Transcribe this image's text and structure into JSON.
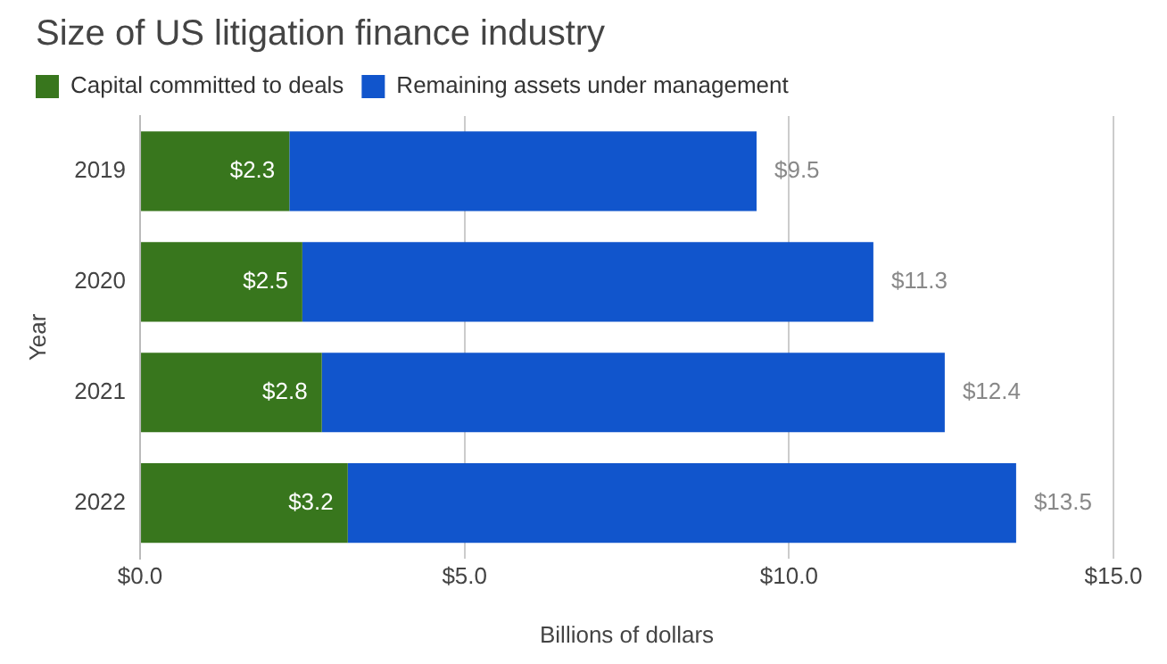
{
  "chart_data": {
    "type": "bar",
    "orientation": "horizontal",
    "stacked": true,
    "title": "Size of US litigation finance industry",
    "xlabel": "Billions of dollars",
    "ylabel": "Year",
    "categories": [
      "2019",
      "2020",
      "2021",
      "2022"
    ],
    "series": [
      {
        "name": "Capital committed to deals",
        "color": "#38761d",
        "values": [
          2.3,
          2.5,
          2.8,
          3.2
        ],
        "value_labels": [
          "$2.3",
          "$2.5",
          "$2.8",
          "$3.2"
        ]
      },
      {
        "name": "Remaining assets under management",
        "color": "#1155cc",
        "values": [
          7.2,
          8.8,
          9.6,
          10.3
        ]
      }
    ],
    "totals": [
      "$9.5",
      "$11.3",
      "$12.4",
      "$13.5"
    ],
    "xlim": [
      0,
      15
    ],
    "xticks": [
      {
        "value": 0,
        "label": "$0.0"
      },
      {
        "value": 5,
        "label": "$5.0"
      },
      {
        "value": 10,
        "label": "$10.0"
      },
      {
        "value": 15,
        "label": "$15.0"
      }
    ],
    "grid": "x",
    "legend": "top left"
  }
}
